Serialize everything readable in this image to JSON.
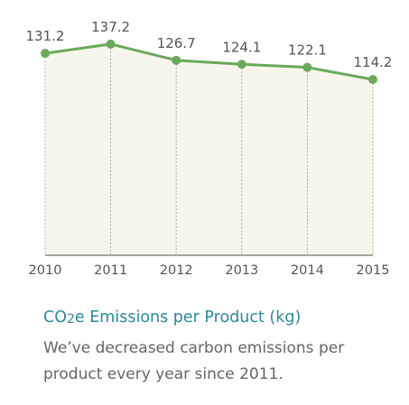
{
  "chart_data": {
    "type": "area",
    "x": [
      "2010",
      "2011",
      "2012",
      "2013",
      "2014",
      "2015"
    ],
    "series": [
      {
        "values": [
          131.2,
          137.2,
          126.7,
          124.1,
          122.1,
          114.2
        ],
        "labels": [
          "131.2",
          "137.2",
          "126.7",
          "124.1",
          "122.1",
          "114.2"
        ]
      }
    ],
    "ylim": [
      0,
      160
    ],
    "grid": false,
    "colors": {
      "line": "#6aaa5c",
      "fill": "#f7f6ec",
      "drop_lines": "#aaaaaa",
      "axis": "#888888"
    }
  },
  "caption": {
    "title_main": "CO",
    "title_sub": "2",
    "title_rest": "e Emissions per Product (kg)",
    "body": "We’ve decreased carbon emissions per product every year since 2011."
  }
}
